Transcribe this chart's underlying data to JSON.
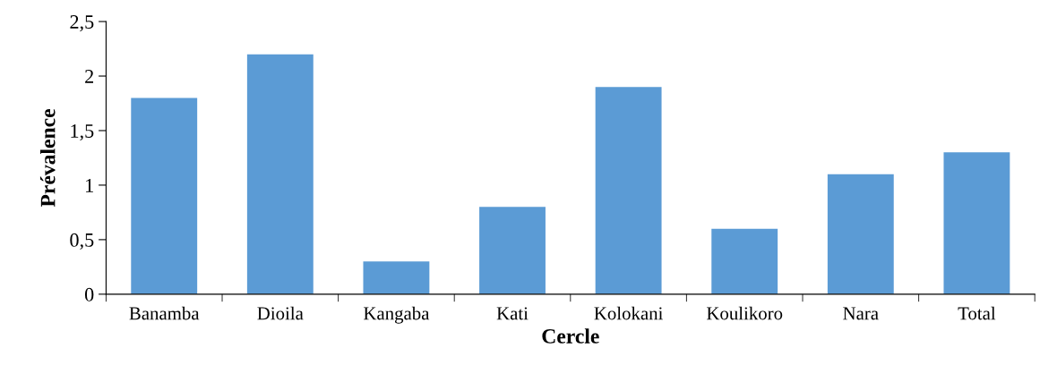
{
  "chart_data": {
    "type": "bar",
    "xlabel": "Cercle",
    "ylabel": "Prévalence",
    "categories": [
      "Banamba",
      "Dioila",
      "Kangaba",
      "Kati",
      "Kolokani",
      "Koulikoro",
      "Nara",
      "Total"
    ],
    "values": [
      1.8,
      2.2,
      0.3,
      0.8,
      1.9,
      0.6,
      1.1,
      1.3
    ],
    "color": "#5b9bd5",
    "ylim": [
      0,
      2.5
    ],
    "yticks": [
      0,
      {
        "value": 0.5,
        "label": "0,5"
      },
      1,
      {
        "value": 1.5,
        "label": "1,5"
      },
      2,
      {
        "value": 2.5,
        "label": "2,5"
      }
    ],
    "grid": false,
    "legend": false
  }
}
